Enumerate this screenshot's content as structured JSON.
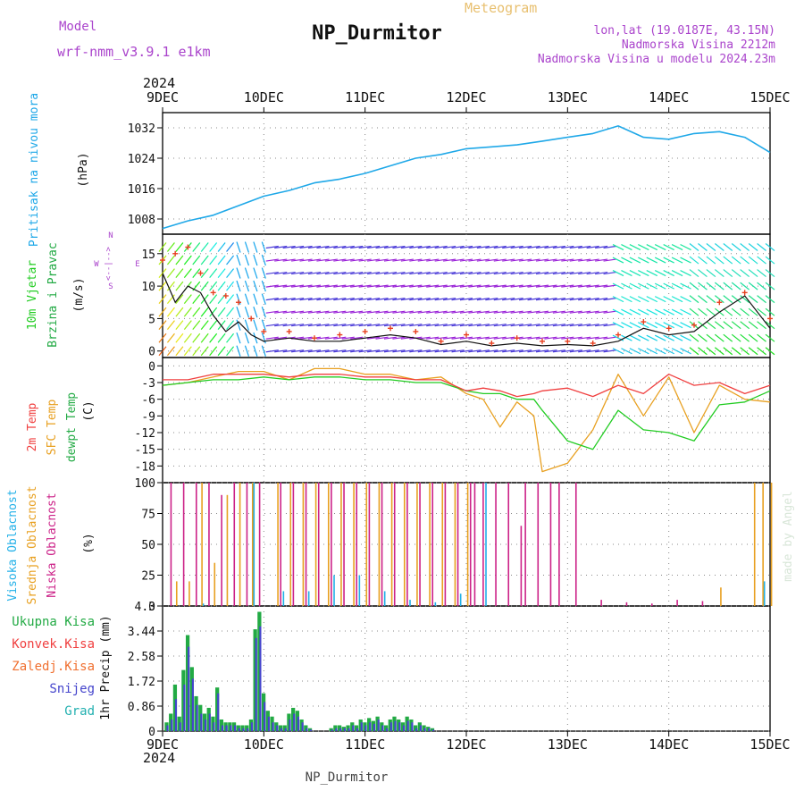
{
  "header": {
    "model_label": "Model",
    "model_name": "wrf-nmm_v3.9.1  e1km",
    "title": "NP_Durmitor",
    "product": "Meteogram",
    "lonlat": "lon,lat (19.0187E, 43.15N)",
    "elevation": "Nadmorska Visina 2212m",
    "model_elevation": "Nadmorska Visina u modelu 2024.23m",
    "year": "2024",
    "bottom_station": "NP_Durmitor",
    "credit": "made by Angel"
  },
  "colors": {
    "pressure": "#1fa8e8",
    "temp2m": "#f04040",
    "sfc_temp": "#e8a020",
    "dewpt": "#22cc22",
    "cloud_high": "#22b0e8",
    "cloud_mid": "#e8a020",
    "cloud_low": "#cc2288",
    "precip_total": "#22aa44",
    "precip_snow": "#4444cc",
    "legend_purple": "#aa44cc",
    "gust": "#e84020"
  },
  "chart_data": [
    {
      "id": "pressure",
      "type": "line",
      "ylabel": "(hPa)",
      "side_label": "Pritisak na nivou mora",
      "ylim": [
        1004,
        1036
      ],
      "yticks": [
        1008,
        1016,
        1024,
        1032
      ],
      "x_ticks": [
        "9DEC",
        "10DEC",
        "11DEC",
        "12DEC",
        "13DEC",
        "14DEC",
        "15DEC"
      ],
      "x": [
        0,
        6,
        12,
        18,
        24,
        30,
        36,
        42,
        48,
        54,
        60,
        66,
        72,
        78,
        84,
        90,
        96,
        102,
        108,
        114,
        120,
        126,
        132,
        138,
        144
      ],
      "series": [
        {
          "key": "pressure",
          "values": [
            1005.5,
            1007.5,
            1009.0,
            1011.5,
            1014.0,
            1015.5,
            1017.5,
            1018.5,
            1020.0,
            1022.0,
            1024.0,
            1025.0,
            1026.5,
            1027.0,
            1027.5,
            1028.5,
            1029.5,
            1030.5,
            1032.5,
            1029.5,
            1029.0,
            1030.5,
            1031.0,
            1029.5,
            1025.5
          ]
        }
      ]
    },
    {
      "id": "wind",
      "type": "line",
      "ylabel": "(m/s)",
      "side_label": [
        "10m Vjetar",
        "Brzina i Pravac"
      ],
      "compass": [
        "N",
        "<--|-->",
        "W",
        "E",
        "S"
      ],
      "ylim": [
        -1,
        18
      ],
      "yticks": [
        0,
        5,
        10,
        15
      ],
      "x": [
        0,
        3,
        6,
        9,
        12,
        15,
        18,
        21,
        24,
        30,
        36,
        42,
        48,
        54,
        60,
        66,
        72,
        78,
        84,
        90,
        96,
        102,
        108,
        114,
        120,
        126,
        132,
        138,
        144
      ],
      "series": [
        {
          "key": "speed",
          "values": [
            12.0,
            7.5,
            10.0,
            9.0,
            5.5,
            3.0,
            4.5,
            2.5,
            1.5,
            2.0,
            1.5,
            1.5,
            2.0,
            2.5,
            2.0,
            1.0,
            1.5,
            0.8,
            1.2,
            0.8,
            1.0,
            0.8,
            1.5,
            3.5,
            2.5,
            3.0,
            6.0,
            8.5,
            3.5
          ]
        },
        {
          "key": "gust",
          "values": [
            14.0,
            15.0,
            16.0,
            12.0,
            9.0,
            8.5,
            7.5,
            5.0,
            3.0,
            3.0,
            2.0,
            2.5,
            3.0,
            3.5,
            3.0,
            1.5,
            2.5,
            1.2,
            2.0,
            1.5,
            1.5,
            1.2,
            2.5,
            4.5,
            3.5,
            4.0,
            7.5,
            9.0,
            5.0
          ]
        }
      ]
    },
    {
      "id": "temperature",
      "type": "line",
      "ylabel": "(C)",
      "side_labels": [
        "2m Temp",
        "SFC Temp",
        "dewpt Temp"
      ],
      "ylim": [
        -21,
        1.5
      ],
      "yticks": [
        0,
        -3,
        -6,
        -9,
        -12,
        -15,
        -18
      ],
      "x": [
        0,
        6,
        12,
        18,
        24,
        30,
        36,
        42,
        48,
        54,
        60,
        66,
        72,
        76,
        80,
        84,
        88,
        90,
        96,
        102,
        108,
        114,
        120,
        126,
        132,
        138,
        144
      ],
      "series": [
        {
          "key": "temp2m",
          "values": [
            -2.5,
            -2.5,
            -1.5,
            -1.5,
            -1.5,
            -2.0,
            -1.5,
            -1.5,
            -2.0,
            -2.0,
            -2.5,
            -2.5,
            -4.5,
            -4.0,
            -4.5,
            -5.5,
            -5.0,
            -4.5,
            -4.0,
            -5.5,
            -3.5,
            -5.0,
            -1.5,
            -3.5,
            -3.0,
            -5.0,
            -3.5
          ]
        },
        {
          "key": "sfc_temp",
          "values": [
            -3.5,
            -3.0,
            -2.0,
            -1.0,
            -1.0,
            -2.5,
            -0.5,
            -0.5,
            -1.5,
            -1.5,
            -2.5,
            -2.0,
            -5.0,
            -6.0,
            -11.0,
            -6.5,
            -9.0,
            -19.0,
            -17.5,
            -11.5,
            -1.5,
            -9.0,
            -2.0,
            -12.0,
            -3.5,
            -6.0,
            -6.5
          ]
        },
        {
          "key": "dewpt",
          "values": [
            -3.5,
            -3.0,
            -2.5,
            -2.5,
            -2.0,
            -2.5,
            -2.0,
            -2.0,
            -2.5,
            -2.5,
            -3.0,
            -3.0,
            -4.5,
            -5.0,
            -5.0,
            -6.0,
            -6.0,
            -8.0,
            -13.5,
            -15.0,
            -8.0,
            -11.5,
            -12.0,
            -13.5,
            -7.0,
            -6.5,
            -4.5
          ]
        }
      ]
    },
    {
      "id": "clouds",
      "type": "bar",
      "ylabel": "(%)",
      "side_labels": [
        "Visoka Oblacnost",
        "Srednja Oblacnost",
        "Niska Oblacnost"
      ],
      "ylim": [
        0,
        100
      ],
      "yticks": [
        0,
        25,
        50,
        75,
        100
      ],
      "series": [
        {
          "key": "cloud_low",
          "x": [
            2,
            5,
            8,
            11,
            14,
            17,
            20,
            23,
            28,
            31,
            34,
            37,
            40,
            43,
            46,
            49,
            52,
            55,
            58,
            61,
            64,
            67,
            70,
            73,
            74,
            76,
            79,
            82,
            85,
            86,
            89,
            92,
            94,
            98,
            104,
            110,
            116,
            122,
            128
          ],
          "values": [
            100,
            100,
            100,
            100,
            90,
            100,
            100,
            100,
            100,
            100,
            100,
            100,
            100,
            100,
            100,
            100,
            100,
            100,
            100,
            100,
            100,
            100,
            100,
            100,
            100,
            100,
            100,
            100,
            65,
            100,
            100,
            100,
            100,
            100,
            5,
            3,
            2,
            5,
            4
          ]
        },
        {
          "key": "cloud_mid",
          "x": [
            3,
            6,
            9,
            12,
            15,
            18,
            21,
            27,
            30,
            33,
            36,
            39,
            42,
            45,
            48,
            51,
            54,
            57,
            60,
            63,
            66,
            69,
            72,
            132,
            140,
            142,
            144
          ],
          "values": [
            20,
            20,
            100,
            35,
            90,
            100,
            100,
            100,
            100,
            100,
            100,
            100,
            100,
            100,
            100,
            100,
            100,
            100,
            100,
            100,
            100,
            100,
            100,
            15,
            100,
            100,
            100
          ]
        },
        {
          "key": "cloud_high",
          "x": [
            10,
            22,
            29,
            35,
            41,
            47,
            53,
            59,
            65,
            71,
            77,
            143
          ],
          "values": [
            2,
            100,
            12,
            12,
            25,
            25,
            12,
            5,
            3,
            10,
            100,
            20
          ]
        }
      ]
    },
    {
      "id": "precip",
      "type": "bar",
      "ylabel": "1hr Precip (mm)",
      "legend": [
        "Ukupna Kisa",
        "Konvek.Kisa",
        "Zaledj.Kisa",
        "Snijeg",
        "Grad"
      ],
      "ylim": [
        0,
        4.3
      ],
      "yticks": [
        0,
        0.86,
        1.72,
        2.58,
        3.44,
        4.3
      ],
      "x_ticks": [
        "9DEC",
        "10DEC",
        "11DEC",
        "12DEC",
        "13DEC",
        "14DEC",
        "15DEC"
      ],
      "x": [
        1,
        2,
        3,
        4,
        5,
        6,
        7,
        8,
        9,
        10,
        11,
        12,
        13,
        14,
        15,
        16,
        17,
        18,
        19,
        20,
        21,
        22,
        23,
        24,
        25,
        26,
        27,
        28,
        29,
        30,
        31,
        32,
        33,
        34,
        35,
        40,
        41,
        42,
        43,
        44,
        45,
        46,
        47,
        48,
        49,
        50,
        51,
        52,
        53,
        54,
        55,
        56,
        57,
        58,
        59,
        60,
        61,
        62,
        63,
        64
      ],
      "series": [
        {
          "key": "precip_total",
          "values": [
            0.3,
            0.6,
            1.6,
            0.5,
            2.1,
            3.3,
            2.2,
            1.2,
            0.9,
            0.6,
            0.8,
            0.5,
            1.5,
            0.4,
            0.3,
            0.3,
            0.3,
            0.2,
            0.2,
            0.2,
            0.4,
            3.5,
            4.1,
            1.3,
            0.7,
            0.5,
            0.3,
            0.2,
            0.2,
            0.6,
            0.8,
            0.7,
            0.4,
            0.2,
            0.1,
            0.1,
            0.2,
            0.2,
            0.15,
            0.2,
            0.3,
            0.2,
            0.4,
            0.3,
            0.45,
            0.35,
            0.5,
            0.3,
            0.2,
            0.4,
            0.5,
            0.4,
            0.3,
            0.5,
            0.4,
            0.2,
            0.3,
            0.2,
            0.15,
            0.1
          ]
        },
        {
          "key": "precip_snow",
          "values": [
            0.2,
            0.4,
            1.1,
            0.3,
            1.6,
            2.9,
            1.8,
            0.9,
            0.6,
            0.4,
            0.6,
            0.3,
            1.3,
            0.2,
            0.2,
            0.2,
            0.2,
            0.1,
            0.1,
            0.1,
            0.3,
            3.2,
            3.6,
            1.0,
            0.5,
            0.3,
            0.2,
            0.1,
            0.1,
            0.4,
            0.6,
            0.5,
            0.3,
            0.1,
            0.05,
            0.05,
            0.1,
            0.1,
            0.1,
            0.1,
            0.2,
            0.1,
            0.3,
            0.2,
            0.3,
            0.25,
            0.4,
            0.2,
            0.1,
            0.3,
            0.35,
            0.3,
            0.2,
            0.35,
            0.3,
            0.1,
            0.2,
            0.1,
            0.1,
            0.05
          ]
        }
      ]
    }
  ]
}
